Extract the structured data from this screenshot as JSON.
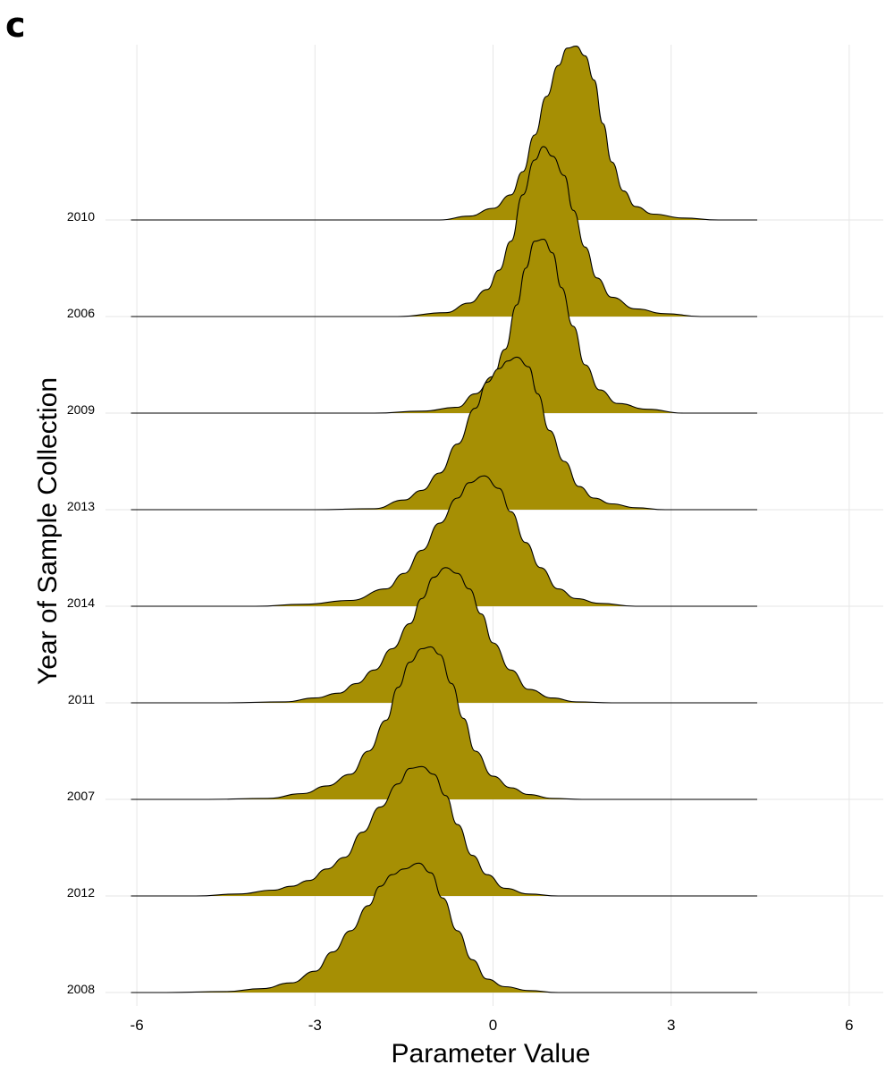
{
  "panel_label": "c",
  "chart_data": {
    "type": "ridgeline",
    "xlabel": "Parameter Value",
    "ylabel": "Year of Sample Collection",
    "xlim": [
      -6,
      6.6
    ],
    "xticks": [
      -6,
      -3,
      0,
      3,
      6
    ],
    "x_range_drawn": [
      -6.1,
      4.45
    ],
    "grid": true,
    "fill_color": "#A68F04",
    "outline_color": "#000000",
    "series": [
      {
        "name": "2010",
        "peak": 1.35,
        "max_height": 1.82,
        "curve": [
          [
            -0.9,
            0
          ],
          [
            -0.4,
            0.04
          ],
          [
            0,
            0.12
          ],
          [
            0.3,
            0.26
          ],
          [
            0.5,
            0.5
          ],
          [
            0.7,
            0.88
          ],
          [
            0.9,
            1.28
          ],
          [
            1.1,
            1.6
          ],
          [
            1.25,
            1.78
          ],
          [
            1.4,
            1.8
          ],
          [
            1.55,
            1.7
          ],
          [
            1.7,
            1.45
          ],
          [
            1.85,
            1.0
          ],
          [
            2.0,
            0.6
          ],
          [
            2.2,
            0.3
          ],
          [
            2.4,
            0.14
          ],
          [
            2.7,
            0.06
          ],
          [
            3.2,
            0.02
          ],
          [
            3.8,
            0
          ]
        ]
      },
      {
        "name": "2006",
        "peak": 0.85,
        "max_height": 1.76,
        "curve": [
          [
            -1.6,
            0
          ],
          [
            -0.8,
            0.04
          ],
          [
            -0.4,
            0.14
          ],
          [
            -0.1,
            0.28
          ],
          [
            0.1,
            0.48
          ],
          [
            0.3,
            0.78
          ],
          [
            0.5,
            1.26
          ],
          [
            0.7,
            1.62
          ],
          [
            0.85,
            1.76
          ],
          [
            1.0,
            1.66
          ],
          [
            1.2,
            1.46
          ],
          [
            1.35,
            1.1
          ],
          [
            1.55,
            0.72
          ],
          [
            1.75,
            0.4
          ],
          [
            2.0,
            0.2
          ],
          [
            2.4,
            0.08
          ],
          [
            2.9,
            0.03
          ],
          [
            3.5,
            0
          ]
        ]
      },
      {
        "name": "2009",
        "peak": 0.75,
        "max_height": 1.8,
        "curve": [
          [
            -2.0,
            0
          ],
          [
            -1.2,
            0.02
          ],
          [
            -0.6,
            0.06
          ],
          [
            -0.3,
            0.2
          ],
          [
            0.0,
            0.38
          ],
          [
            0.2,
            0.66
          ],
          [
            0.4,
            1.12
          ],
          [
            0.55,
            1.5
          ],
          [
            0.7,
            1.78
          ],
          [
            0.85,
            1.8
          ],
          [
            1.0,
            1.66
          ],
          [
            1.15,
            1.3
          ],
          [
            1.35,
            0.9
          ],
          [
            1.55,
            0.5
          ],
          [
            1.8,
            0.24
          ],
          [
            2.1,
            0.1
          ],
          [
            2.6,
            0.04
          ],
          [
            3.2,
            0
          ]
        ]
      },
      {
        "name": "2013",
        "peak": 0.4,
        "max_height": 1.58,
        "curve": [
          [
            -3.0,
            0
          ],
          [
            -2.0,
            0.01
          ],
          [
            -1.5,
            0.1
          ],
          [
            -1.2,
            0.2
          ],
          [
            -0.9,
            0.38
          ],
          [
            -0.6,
            0.68
          ],
          [
            -0.3,
            1.05
          ],
          [
            -0.1,
            1.32
          ],
          [
            0.1,
            1.46
          ],
          [
            0.25,
            1.54
          ],
          [
            0.4,
            1.58
          ],
          [
            0.6,
            1.48
          ],
          [
            0.75,
            1.2
          ],
          [
            0.95,
            0.82
          ],
          [
            1.2,
            0.5
          ],
          [
            1.45,
            0.24
          ],
          [
            1.7,
            0.12
          ],
          [
            2.0,
            0.06
          ],
          [
            2.4,
            0.02
          ],
          [
            2.9,
            0
          ]
        ]
      },
      {
        "name": "2014",
        "peak": -0.15,
        "max_height": 1.35,
        "curve": [
          [
            -4.0,
            0
          ],
          [
            -3.2,
            0.02
          ],
          [
            -2.4,
            0.06
          ],
          [
            -1.8,
            0.18
          ],
          [
            -1.5,
            0.34
          ],
          [
            -1.2,
            0.58
          ],
          [
            -0.9,
            0.86
          ],
          [
            -0.6,
            1.12
          ],
          [
            -0.4,
            1.28
          ],
          [
            -0.15,
            1.35
          ],
          [
            0.1,
            1.22
          ],
          [
            0.3,
            0.98
          ],
          [
            0.55,
            0.66
          ],
          [
            0.8,
            0.4
          ],
          [
            1.1,
            0.18
          ],
          [
            1.4,
            0.08
          ],
          [
            1.8,
            0.03
          ],
          [
            2.4,
            0
          ]
        ]
      },
      {
        "name": "2011",
        "peak": -0.8,
        "max_height": 1.4,
        "curve": [
          [
            -4.5,
            0
          ],
          [
            -3.5,
            0.01
          ],
          [
            -3.0,
            0.05
          ],
          [
            -2.6,
            0.1
          ],
          [
            -2.3,
            0.2
          ],
          [
            -2.0,
            0.34
          ],
          [
            -1.7,
            0.56
          ],
          [
            -1.4,
            0.82
          ],
          [
            -1.2,
            1.08
          ],
          [
            -1.0,
            1.3
          ],
          [
            -0.8,
            1.4
          ],
          [
            -0.6,
            1.34
          ],
          [
            -0.4,
            1.18
          ],
          [
            -0.2,
            0.92
          ],
          [
            0.0,
            0.62
          ],
          [
            0.3,
            0.34
          ],
          [
            0.6,
            0.14
          ],
          [
            1.0,
            0.05
          ],
          [
            1.4,
            0.01
          ],
          [
            2.0,
            0
          ]
        ]
      },
      {
        "name": "2007",
        "peak": -1.1,
        "max_height": 1.58,
        "curve": [
          [
            -4.8,
            0
          ],
          [
            -3.8,
            0.01
          ],
          [
            -3.2,
            0.06
          ],
          [
            -2.8,
            0.14
          ],
          [
            -2.4,
            0.26
          ],
          [
            -2.1,
            0.5
          ],
          [
            -1.8,
            0.82
          ],
          [
            -1.6,
            1.16
          ],
          [
            -1.4,
            1.42
          ],
          [
            -1.2,
            1.56
          ],
          [
            -1.05,
            1.58
          ],
          [
            -0.9,
            1.5
          ],
          [
            -0.7,
            1.2
          ],
          [
            -0.5,
            0.84
          ],
          [
            -0.3,
            0.5
          ],
          [
            0.0,
            0.24
          ],
          [
            0.3,
            0.12
          ],
          [
            0.6,
            0.05
          ],
          [
            1.0,
            0.01
          ],
          [
            1.5,
            0
          ]
        ]
      },
      {
        "name": "2012",
        "peak": -1.2,
        "max_height": 1.34,
        "curve": [
          [
            -5.0,
            0
          ],
          [
            -4.3,
            0.02
          ],
          [
            -3.7,
            0.06
          ],
          [
            -3.4,
            0.1
          ],
          [
            -3.1,
            0.16
          ],
          [
            -2.8,
            0.28
          ],
          [
            -2.5,
            0.4
          ],
          [
            -2.2,
            0.66
          ],
          [
            -1.9,
            0.92
          ],
          [
            -1.6,
            1.16
          ],
          [
            -1.4,
            1.32
          ],
          [
            -1.2,
            1.34
          ],
          [
            -1.0,
            1.26
          ],
          [
            -0.8,
            1.04
          ],
          [
            -0.6,
            0.74
          ],
          [
            -0.35,
            0.42
          ],
          [
            -0.1,
            0.22
          ],
          [
            0.2,
            0.08
          ],
          [
            0.6,
            0.02
          ],
          [
            1.1,
            0
          ]
        ]
      },
      {
        "name": "2008",
        "peak": -1.3,
        "max_height": 1.34,
        "curve": [
          [
            -5.5,
            0
          ],
          [
            -4.5,
            0.01
          ],
          [
            -3.9,
            0.04
          ],
          [
            -3.4,
            0.1
          ],
          [
            -3.0,
            0.22
          ],
          [
            -2.7,
            0.42
          ],
          [
            -2.4,
            0.64
          ],
          [
            -2.1,
            0.9
          ],
          [
            -1.9,
            1.1
          ],
          [
            -1.7,
            1.22
          ],
          [
            -1.5,
            1.28
          ],
          [
            -1.25,
            1.34
          ],
          [
            -1.05,
            1.24
          ],
          [
            -0.85,
            0.98
          ],
          [
            -0.6,
            0.64
          ],
          [
            -0.35,
            0.34
          ],
          [
            -0.1,
            0.14
          ],
          [
            0.2,
            0.06
          ],
          [
            0.6,
            0.02
          ],
          [
            1.1,
            0
          ]
        ]
      }
    ]
  }
}
